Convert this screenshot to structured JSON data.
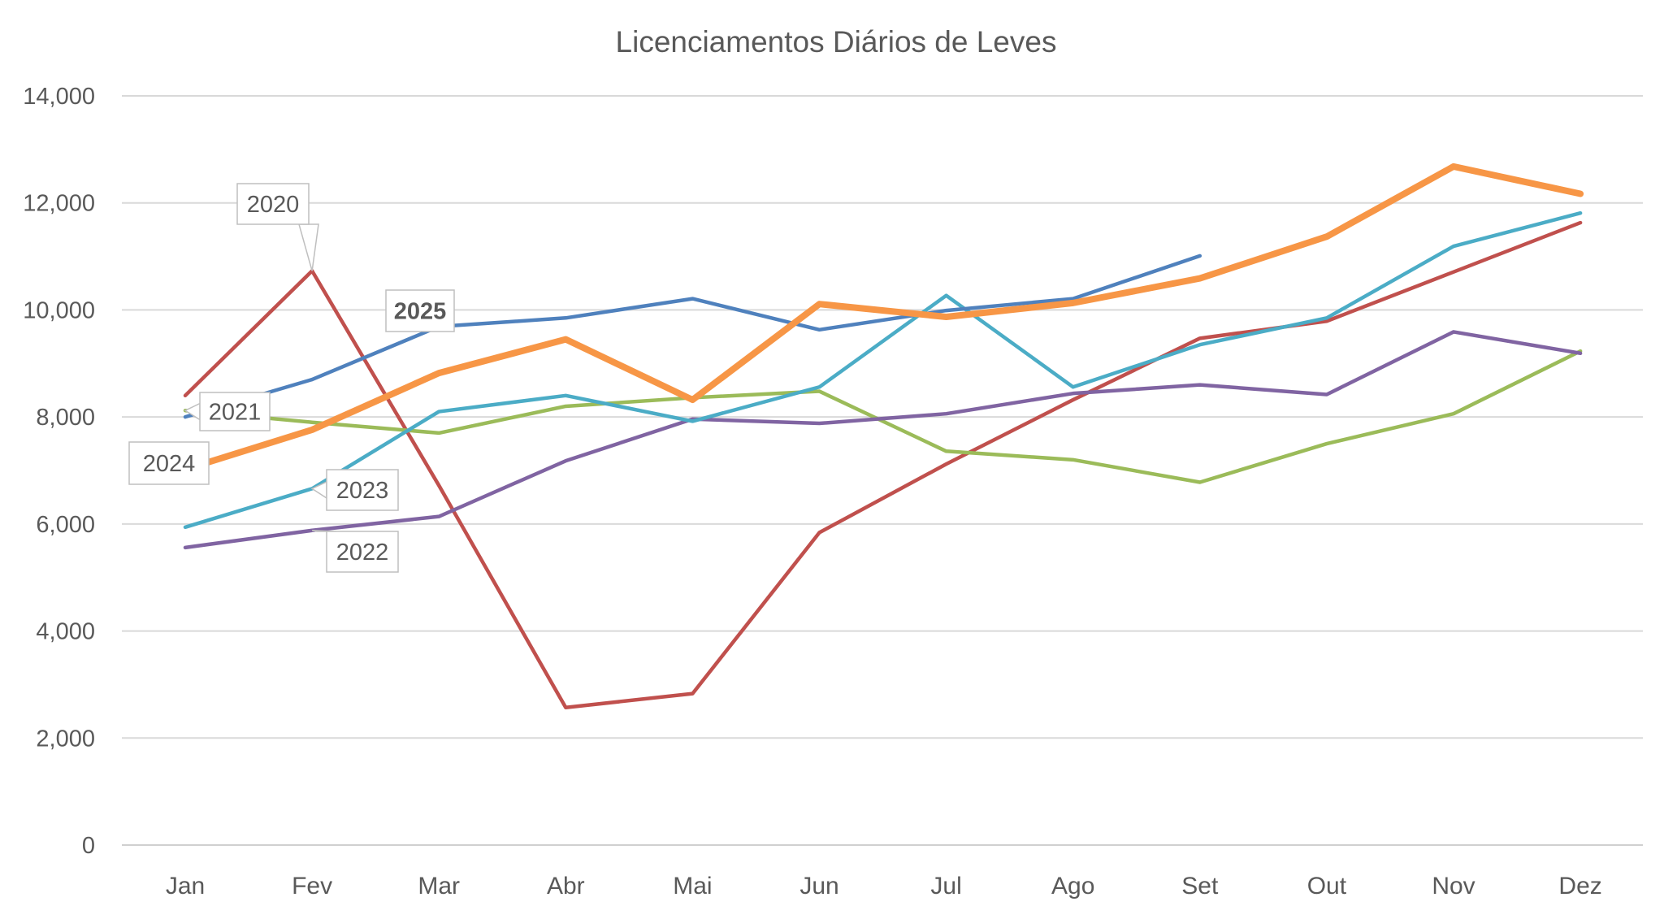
{
  "chart_data": {
    "type": "line",
    "title": "Licenciamentos Diários de Leves",
    "xlabel": "",
    "ylabel": "",
    "categories": [
      "Jan",
      "Fev",
      "Mar",
      "Abr",
      "Mai",
      "Jun",
      "Jul",
      "Ago",
      "Set",
      "Out",
      "Nov",
      "Dez"
    ],
    "ylim": [
      0,
      14000
    ],
    "yticks": [
      0,
      2000,
      4000,
      6000,
      8000,
      10000,
      12000,
      14000
    ],
    "ytick_labels": [
      "0",
      "2,000",
      "4,000",
      "6,000",
      "8,000",
      "10,000",
      "12,000",
      "14,000"
    ],
    "grid": true,
    "legend": "none (inline data labels)",
    "series": [
      {
        "name": "2020",
        "color": "#C0504D",
        "width": "normal",
        "label_at": 1,
        "values": [
          8400,
          10730,
          6720,
          2570,
          2830,
          5840,
          7120,
          8320,
          9470,
          9790,
          10710,
          11630
        ]
      },
      {
        "name": "2021",
        "color": "#9BBB59",
        "width": "normal",
        "label_at": 0,
        "values": [
          8120,
          7900,
          7700,
          8200,
          8360,
          8480,
          7360,
          7200,
          6780,
          7500,
          8060,
          9230
        ]
      },
      {
        "name": "2022",
        "color": "#8064A2",
        "width": "normal",
        "label_at": 1,
        "values": [
          5560,
          5880,
          6140,
          7180,
          7960,
          7880,
          8060,
          8440,
          8600,
          8420,
          9590,
          9190
        ]
      },
      {
        "name": "2023",
        "color": "#4BACC6",
        "width": "normal",
        "label_at": 1,
        "values": [
          5940,
          6660,
          8100,
          8400,
          7920,
          8560,
          10270,
          8560,
          9350,
          9850,
          11190,
          11810
        ]
      },
      {
        "name": "2024",
        "color": "#F79646",
        "width": "thick",
        "label_at": 0,
        "values": [
          7020,
          7760,
          8820,
          9450,
          8320,
          10110,
          9870,
          10130,
          10590,
          11370,
          12680,
          12170
        ]
      },
      {
        "name": "2025",
        "color": "#4F81BD",
        "width": "normal",
        "label_at": 2,
        "bold_label": true,
        "values": [
          8000,
          8700,
          9690,
          9850,
          10210,
          9630,
          9990,
          10210,
          11010,
          null,
          null,
          null
        ]
      }
    ]
  }
}
